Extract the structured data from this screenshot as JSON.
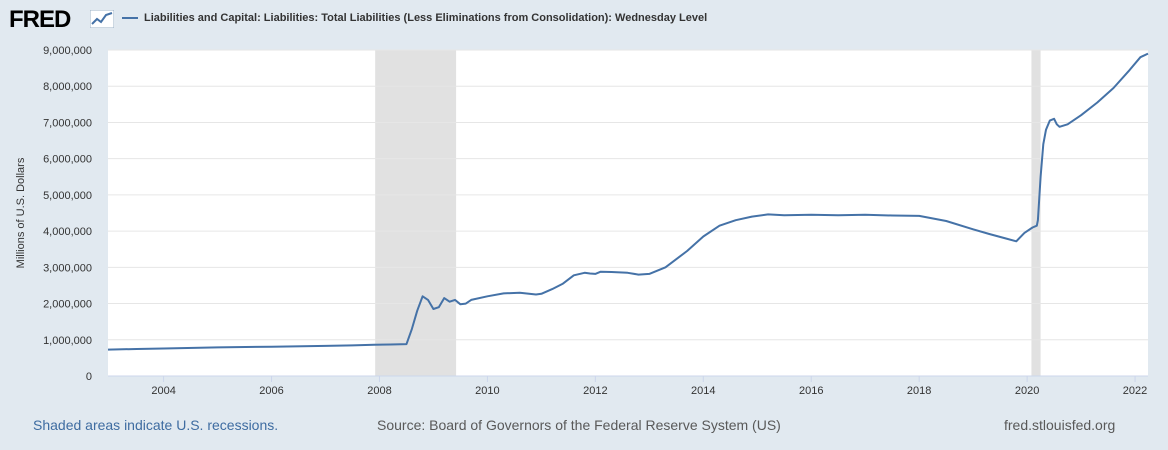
{
  "header": {
    "logo_text": "FRED",
    "logo_icon": "line-chart-icon"
  },
  "colors": {
    "background": "#e1e9f0",
    "plot_background": "#ffffff",
    "series": "#4572a7",
    "recession_shade": "#e1e1e1",
    "gridline": "#e6e6e6"
  },
  "chart_data": {
    "type": "line",
    "title": "",
    "xlabel": "",
    "ylabel": "Millions of U.S. Dollars",
    "xlim": [
      2002.97,
      2022.24
    ],
    "ylim": [
      0,
      9000000
    ],
    "x_ticks": [
      2004,
      2006,
      2008,
      2010,
      2012,
      2014,
      2016,
      2018,
      2020,
      2022
    ],
    "x_tick_labels": [
      "2004",
      "2006",
      "2008",
      "2010",
      "2012",
      "2014",
      "2016",
      "2018",
      "2020",
      "2022"
    ],
    "y_ticks": [
      0,
      1000000,
      2000000,
      3000000,
      4000000,
      5000000,
      6000000,
      7000000,
      8000000,
      9000000
    ],
    "y_tick_labels": [
      "0",
      "1,000,000",
      "2,000,000",
      "3,000,000",
      "4,000,000",
      "5,000,000",
      "6,000,000",
      "7,000,000",
      "8,000,000",
      "9,000,000"
    ],
    "grid": true,
    "legend_position": "top",
    "recessions": [
      [
        2007.92,
        2009.42
      ],
      [
        2020.08,
        2020.25
      ]
    ],
    "series": [
      {
        "name": "Liabilities and Capital: Liabilities: Total Liabilities (Less Eliminations from Consolidation): Wednesday Level",
        "x": [
          2002.97,
          2003.5,
          2004.0,
          2005.0,
          2006.0,
          2007.0,
          2007.5,
          2007.9,
          2008.2,
          2008.5,
          2008.6,
          2008.7,
          2008.8,
          2008.9,
          2009.0,
          2009.1,
          2009.2,
          2009.3,
          2009.4,
          2009.5,
          2009.6,
          2009.7,
          2010.0,
          2010.3,
          2010.6,
          2010.9,
          2011.0,
          2011.2,
          2011.4,
          2011.6,
          2011.8,
          2011.9,
          2012.0,
          2012.1,
          2012.3,
          2012.6,
          2012.8,
          2013.0,
          2013.3,
          2013.7,
          2014.0,
          2014.3,
          2014.6,
          2014.9,
          2015.2,
          2015.5,
          2016.0,
          2016.5,
          2017.0,
          2017.5,
          2018.0,
          2018.5,
          2019.0,
          2019.3,
          2019.6,
          2019.8,
          2019.95,
          2020.1,
          2020.18,
          2020.2,
          2020.25,
          2020.3,
          2020.35,
          2020.42,
          2020.5,
          2020.55,
          2020.6,
          2020.75,
          2021.0,
          2021.3,
          2021.6,
          2021.9,
          2022.1,
          2022.24
        ],
        "y": [
          730000,
          745000,
          760000,
          790000,
          810000,
          830000,
          845000,
          860000,
          870000,
          880000,
          1300000,
          1800000,
          2200000,
          2100000,
          1850000,
          1900000,
          2150000,
          2050000,
          2100000,
          1980000,
          2000000,
          2100000,
          2200000,
          2280000,
          2300000,
          2250000,
          2270000,
          2400000,
          2550000,
          2780000,
          2850000,
          2830000,
          2820000,
          2880000,
          2870000,
          2850000,
          2800000,
          2820000,
          3000000,
          3450000,
          3850000,
          4150000,
          4300000,
          4400000,
          4460000,
          4440000,
          4450000,
          4440000,
          4450000,
          4430000,
          4420000,
          4280000,
          4050000,
          3920000,
          3800000,
          3720000,
          3950000,
          4100000,
          4150000,
          4300000,
          5500000,
          6400000,
          6800000,
          7050000,
          7100000,
          6950000,
          6880000,
          6950000,
          7200000,
          7550000,
          7950000,
          8450000,
          8800000,
          8900000
        ]
      }
    ]
  },
  "footer": {
    "recession_note": "Shaded areas indicate U.S. recessions.",
    "source": "Source: Board of Governors of the Federal Reserve System (US)",
    "site": "fred.stlouisfed.org"
  }
}
